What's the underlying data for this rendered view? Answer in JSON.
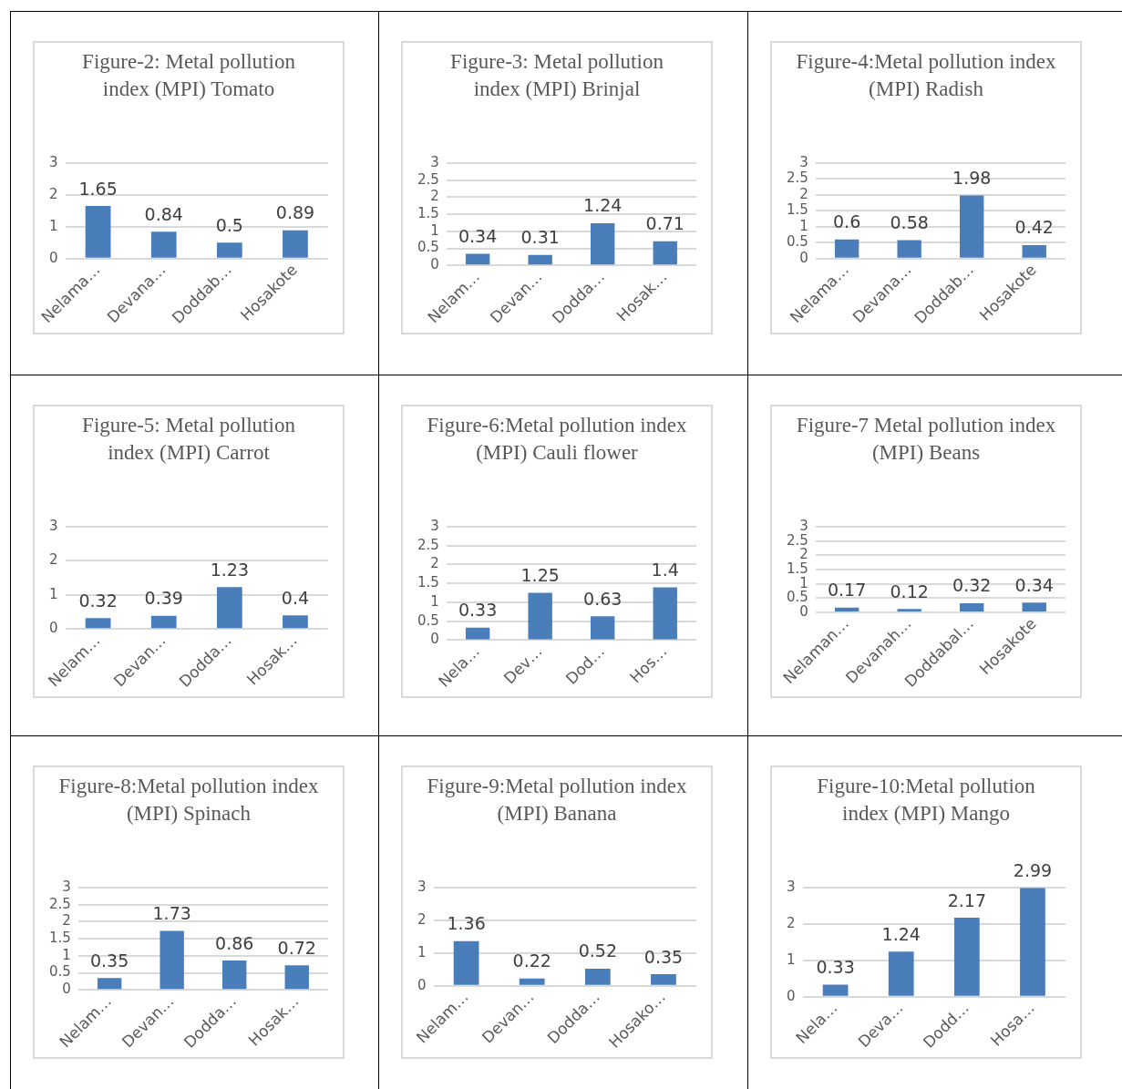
{
  "chart_data": [
    {
      "type": "bar",
      "title": "Figure-2: Metal pollution index  (MPI) Tomato",
      "categories": [
        "Nelama…",
        "Devana…",
        "Doddab…",
        "Hosakote"
      ],
      "values": [
        1.65,
        0.84,
        0.5,
        0.89
      ],
      "color": "#4a7ebb",
      "ylim": [
        0,
        3
      ],
      "yticks": [
        0,
        1,
        2,
        3
      ],
      "grid": "y",
      "data_labels": true
    },
    {
      "type": "bar",
      "title": "Figure-3: Metal pollution index  (MPI) Brinjal",
      "categories": [
        "Nelam…",
        "Devan…",
        "Dodda…",
        "Hosak…"
      ],
      "values": [
        0.34,
        0.31,
        1.24,
        0.71
      ],
      "color": "#4a7ebb",
      "ylim": [
        0,
        3
      ],
      "yticks": [
        0,
        0.5,
        1,
        1.5,
        2,
        2.5,
        3
      ],
      "grid": "y",
      "data_labels": true
    },
    {
      "type": "bar",
      "title": "Figure-4:Metal pollution index (MPI) Radish",
      "categories": [
        "Nelama…",
        "Devana…",
        "Doddab…",
        "Hosakote"
      ],
      "values": [
        0.6,
        0.58,
        1.98,
        0.42
      ],
      "color": "#4a7ebb",
      "ylim": [
        0,
        3
      ],
      "yticks": [
        0,
        0.5,
        1,
        1.5,
        2,
        2.5,
        3
      ],
      "grid": "y",
      "data_labels": true
    },
    {
      "type": "bar",
      "title": "Figure-5: Metal pollution index (MPI) Carrot",
      "categories": [
        "Nelam…",
        "Devan…",
        "Dodda…",
        "Hosak…"
      ],
      "values": [
        0.32,
        0.39,
        1.23,
        0.4
      ],
      "color": "#4a7ebb",
      "ylim": [
        0,
        3
      ],
      "yticks": [
        0,
        1,
        2,
        3
      ],
      "grid": "y",
      "data_labels": true
    },
    {
      "type": "bar",
      "title": "Figure-6:Metal pollution index (MPI) Cauli flower",
      "categories": [
        "Nela…",
        "Dev…",
        "Dod…",
        "Hos…"
      ],
      "values": [
        0.33,
        1.25,
        0.63,
        1.4
      ],
      "color": "#4a7ebb",
      "ylim": [
        0,
        3
      ],
      "yticks": [
        0,
        0.5,
        1,
        1.5,
        2,
        2.5,
        3
      ],
      "grid": "y",
      "data_labels": true
    },
    {
      "type": "bar",
      "title": "Figure-7 Metal pollution index (MPI) Beans",
      "categories": [
        "Nelaman…",
        "Devanah…",
        "Doddabal…",
        "Hosakote"
      ],
      "values": [
        0.17,
        0.12,
        0.32,
        0.34
      ],
      "color": "#4a7ebb",
      "ylim": [
        0,
        3
      ],
      "yticks": [
        0,
        0.5,
        1,
        1.5,
        2,
        2.5,
        3
      ],
      "grid": "y",
      "data_labels": true
    },
    {
      "type": "bar",
      "title": "Figure-8:Metal pollution index (MPI) Spinach",
      "categories": [
        "Nelam…",
        "Devan…",
        "Dodda…",
        "Hosak…"
      ],
      "values": [
        0.35,
        1.73,
        0.86,
        0.72
      ],
      "color": "#4a7ebb",
      "ylim": [
        0,
        3
      ],
      "yticks": [
        0,
        0.5,
        1,
        1.5,
        2,
        2.5,
        3
      ],
      "grid": "y",
      "data_labels": true
    },
    {
      "type": "bar",
      "title": "Figure-9:Metal pollution index (MPI) Banana",
      "categories": [
        "Nelam…",
        "Devan…",
        "Dodda…",
        "Hosako…"
      ],
      "values": [
        1.36,
        0.22,
        0.52,
        0.35
      ],
      "color": "#4a7ebb",
      "ylim": [
        0,
        3
      ],
      "yticks": [
        0,
        1,
        2,
        3
      ],
      "grid": "y",
      "data_labels": true
    },
    {
      "type": "bar",
      "title": "Figure-10:Metal pollution index (MPI) Mango",
      "categories": [
        "Nela…",
        "Deva…",
        "Dodd…",
        "Hosa…"
      ],
      "values": [
        0.33,
        1.24,
        2.17,
        2.99
      ],
      "color": "#4a7ebb",
      "ylim": [
        0,
        3
      ],
      "yticks": [
        0,
        1,
        2,
        3
      ],
      "grid": "y",
      "data_labels": true
    }
  ]
}
